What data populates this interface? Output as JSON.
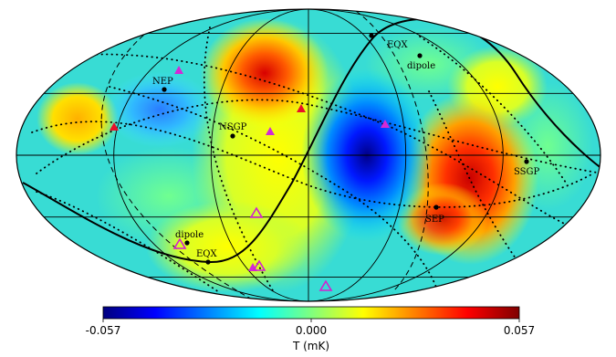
{
  "colorbar": {
    "min_label": "-0.057",
    "mid_label": "0.000",
    "max_label": "0.057",
    "unit_label": "T (mK)",
    "colors": [
      "#00007f",
      "#0000ff",
      "#007fff",
      "#00ffff",
      "#7fff7f",
      "#ffff00",
      "#ff7f00",
      "#ff0000",
      "#7f0000"
    ]
  },
  "map_labels": [
    {
      "id": "nep",
      "text": "NEP"
    },
    {
      "id": "eqx-top",
      "text": "EQX"
    },
    {
      "id": "dipole-top",
      "text": "dipole"
    },
    {
      "id": "nsgp",
      "text": "NSGP"
    },
    {
      "id": "ssgp",
      "text": "SSGP"
    },
    {
      "id": "sep",
      "text": "SEP"
    },
    {
      "id": "dipole-bottom",
      "text": "dipole"
    },
    {
      "id": "eqx-bottom",
      "text": "EQX"
    }
  ],
  "marker_colors": {
    "filled_red": "#e8102a",
    "filled_magenta": "#d22ad6",
    "open_magenta": "#d41fd0"
  }
}
